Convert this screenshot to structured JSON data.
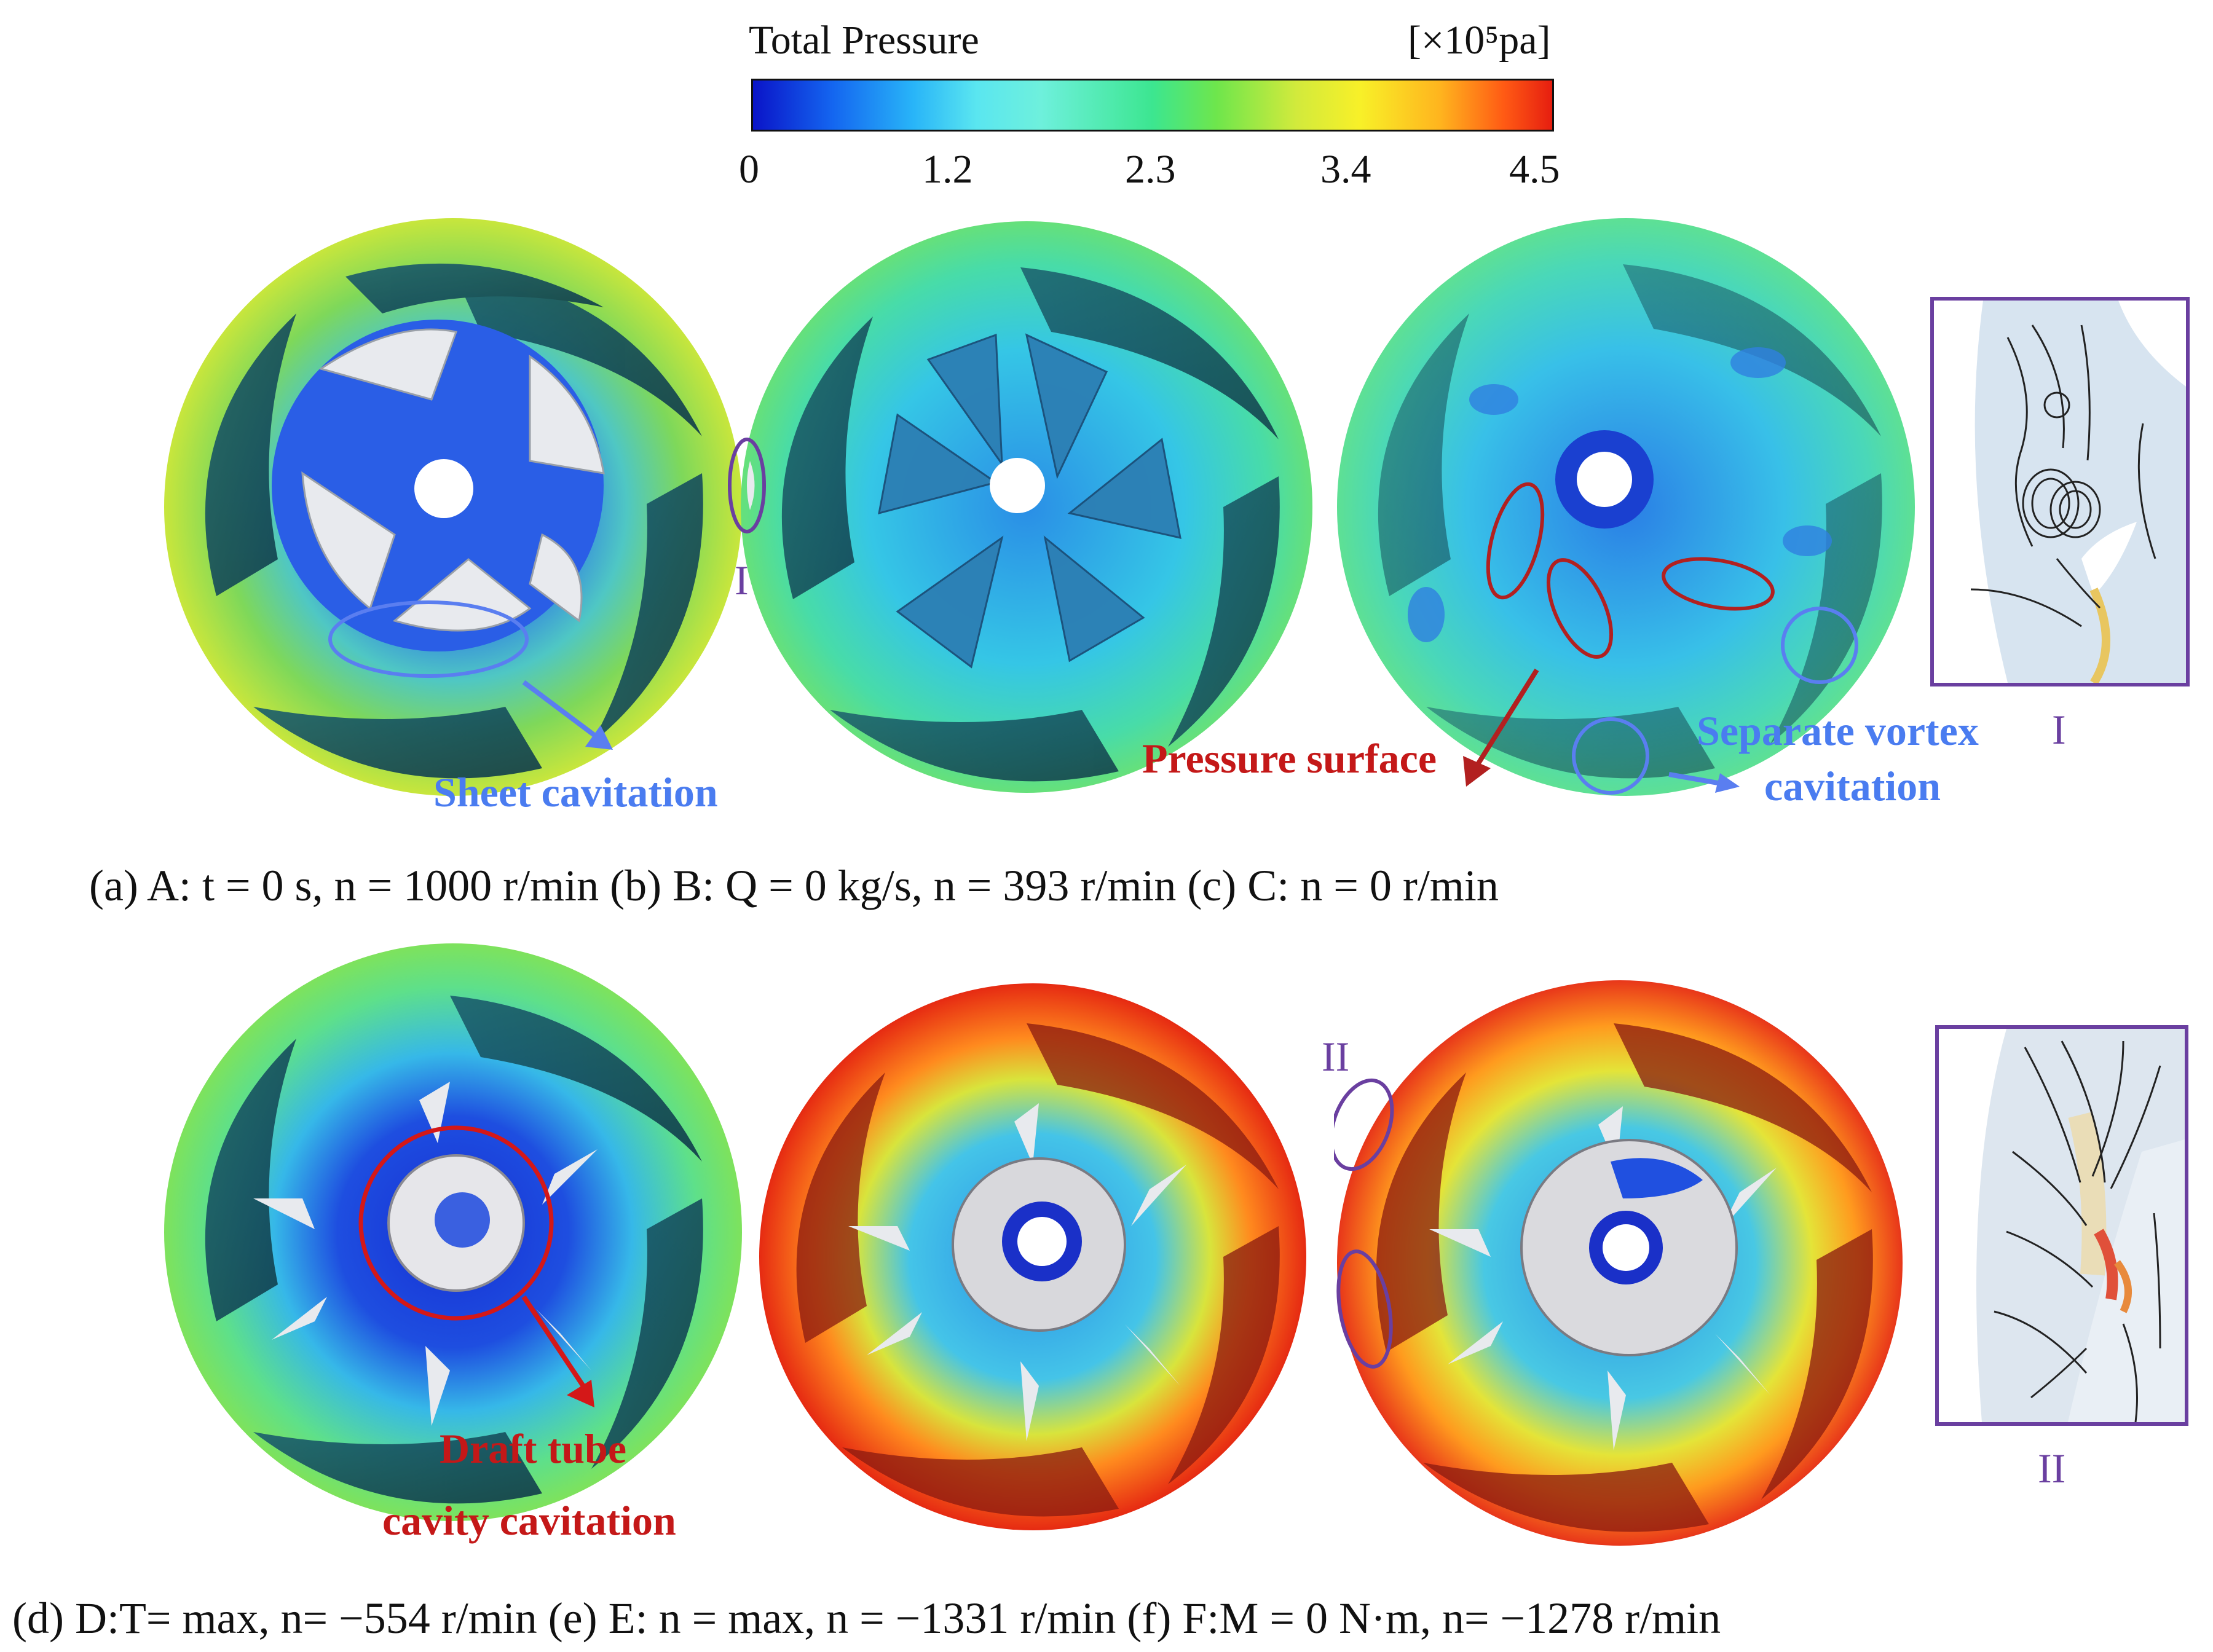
{
  "colorbar": {
    "title": "Total Pressure",
    "unit": "[×10⁵pa]",
    "ticks": [
      "0",
      "1.2",
      "2.3",
      "3.4",
      "4.5"
    ]
  },
  "annotations": {
    "sheet": "Sheet cavitation",
    "pressure_surface": "Pressure surface",
    "separate_line1": "Separate vortex",
    "separate_line2": "cavitation",
    "draft_line1": "Draft tube",
    "draft_line2": "cavity cavitation",
    "roman_I_a": "I",
    "roman_I_b": "I",
    "roman_II_a": "II",
    "roman_II_b": "II"
  },
  "captions": {
    "row1": "(a) A: t = 0 s, n = 1000 r/min (b) B: Q = 0 kg/s, n = 393 r/min (c) C: n = 0 r/min",
    "row2": "(d) D:T= max, n= −554 r/min (e) E: n = max, n = −1331 r/min (f) F:M = 0 N·m, n= −1278 r/min"
  },
  "colors": {
    "inset_border": "#6a3fa0",
    "blue_annotation": "#4a7cf0",
    "red_annotation": "#c41818"
  }
}
